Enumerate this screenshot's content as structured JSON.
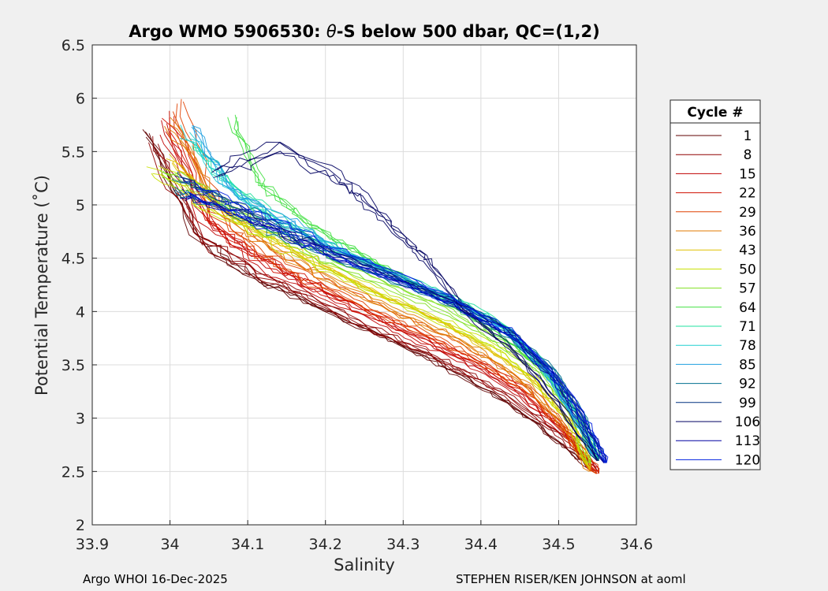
{
  "chart_data": {
    "type": "line",
    "title_prefix": "Argo WMO 5906530: ",
    "title_theta": "θ",
    "title_suffix": "-S below 500 dbar,  QC=(1,2)",
    "xlabel": "Salinity",
    "ylabel": "Potential Temperature (˚C)",
    "xlim": [
      33.9,
      34.6
    ],
    "ylim": [
      2,
      6.5
    ],
    "x_ticks": [
      "33.9",
      "34",
      "34.1",
      "34.2",
      "34.3",
      "34.4",
      "34.5",
      "34.6"
    ],
    "y_ticks": [
      "2",
      "2.5",
      "3",
      "3.5",
      "4",
      "4.5",
      "5",
      "5.5",
      "6",
      "6.5"
    ],
    "grid": true,
    "legend_title": "Cycle #",
    "legend_placement": "right-outside",
    "series": [
      {
        "name": "1",
        "color": "#600000",
        "x": [
          33.97,
          34.03,
          34.1,
          34.18,
          34.25,
          34.32,
          34.38,
          34.44,
          34.5,
          34.54
        ],
        "y": [
          5.72,
          4.75,
          4.35,
          4.08,
          3.85,
          3.62,
          3.38,
          3.12,
          2.78,
          2.52
        ]
      },
      {
        "name": "8",
        "color": "#8f0000",
        "x": [
          33.98,
          34.04,
          34.11,
          34.19,
          34.26,
          34.33,
          34.39,
          34.45,
          34.51,
          34.55
        ],
        "y": [
          5.6,
          4.7,
          4.4,
          4.1,
          3.85,
          3.62,
          3.4,
          3.15,
          2.8,
          2.5
        ]
      },
      {
        "name": "15",
        "color": "#bf0000",
        "x": [
          33.99,
          34.05,
          34.12,
          34.2,
          34.27,
          34.33,
          34.39,
          34.45,
          34.51,
          34.55
        ],
        "y": [
          5.75,
          4.8,
          4.45,
          4.15,
          3.92,
          3.7,
          3.5,
          3.22,
          2.85,
          2.48
        ]
      },
      {
        "name": "22",
        "color": "#d01000",
        "x": [
          34.0,
          34.05,
          34.12,
          34.2,
          34.27,
          34.34,
          34.4,
          34.46,
          34.51,
          34.55
        ],
        "y": [
          5.85,
          4.85,
          4.5,
          4.2,
          3.95,
          3.72,
          3.52,
          3.25,
          2.88,
          2.5
        ]
      },
      {
        "name": "29",
        "color": "#e04000",
        "x": [
          34.01,
          34.06,
          34.12,
          34.2,
          34.27,
          34.34,
          34.4,
          34.46,
          34.51,
          34.55
        ],
        "y": [
          5.95,
          4.95,
          4.58,
          4.25,
          4.0,
          3.78,
          3.55,
          3.28,
          2.9,
          2.48
        ]
      },
      {
        "name": "36",
        "color": "#e07800",
        "x": [
          34.0,
          34.06,
          34.13,
          34.21,
          34.28,
          34.35,
          34.41,
          34.46,
          34.51,
          34.54
        ],
        "y": [
          5.8,
          5.0,
          4.62,
          4.3,
          4.05,
          3.82,
          3.58,
          3.3,
          2.9,
          2.5
        ]
      },
      {
        "name": "43",
        "color": "#e0c000",
        "x": [
          34.0,
          34.06,
          34.13,
          34.21,
          34.28,
          34.35,
          34.41,
          34.47,
          34.52,
          34.54
        ],
        "y": [
          5.4,
          4.95,
          4.65,
          4.35,
          4.1,
          3.88,
          3.62,
          3.32,
          2.92,
          2.52
        ]
      },
      {
        "name": "50",
        "color": "#c8e000",
        "x": [
          33.98,
          34.05,
          34.13,
          34.21,
          34.28,
          34.35,
          34.42,
          34.47,
          34.52,
          34.54
        ],
        "y": [
          5.35,
          5.0,
          4.7,
          4.4,
          4.15,
          3.92,
          3.68,
          3.38,
          2.95,
          2.55
        ]
      },
      {
        "name": "57",
        "color": "#80e020",
        "x": [
          33.99,
          34.06,
          34.13,
          34.21,
          34.29,
          34.36,
          34.42,
          34.48,
          34.52,
          34.54
        ],
        "y": [
          5.3,
          5.05,
          4.75,
          4.45,
          4.2,
          3.98,
          3.72,
          3.42,
          3.0,
          2.58
        ]
      },
      {
        "name": "64",
        "color": "#40e040",
        "x": [
          34.08,
          34.12,
          34.18,
          34.25,
          34.31,
          34.37,
          34.42,
          34.48,
          34.52,
          34.55
        ],
        "y": [
          5.85,
          5.2,
          4.85,
          4.55,
          4.3,
          4.05,
          3.8,
          3.48,
          3.05,
          2.6
        ]
      },
      {
        "name": "71",
        "color": "#20e0a0",
        "x": [
          34.03,
          34.09,
          34.15,
          34.22,
          34.3,
          34.37,
          34.43,
          34.48,
          34.52,
          34.55
        ],
        "y": [
          5.55,
          5.1,
          4.8,
          4.55,
          4.3,
          4.1,
          3.85,
          3.5,
          3.05,
          2.62
        ]
      },
      {
        "name": "78",
        "color": "#20d0d0",
        "x": [
          34.02,
          34.08,
          34.14,
          34.22,
          34.3,
          34.37,
          34.43,
          34.48,
          34.52,
          34.55
        ],
        "y": [
          5.7,
          5.15,
          4.85,
          4.58,
          4.32,
          4.1,
          3.85,
          3.5,
          3.05,
          2.62
        ]
      },
      {
        "name": "85",
        "color": "#20a0e0",
        "x": [
          34.03,
          34.08,
          34.15,
          34.22,
          34.3,
          34.37,
          34.43,
          34.48,
          34.52,
          34.55
        ],
        "y": [
          5.75,
          5.15,
          4.85,
          4.58,
          4.32,
          4.1,
          3.85,
          3.5,
          3.05,
          2.62
        ]
      },
      {
        "name": "92",
        "color": "#007090",
        "x": [
          34.0,
          34.07,
          34.14,
          34.22,
          34.3,
          34.37,
          34.43,
          34.49,
          34.53,
          34.55
        ],
        "y": [
          5.2,
          5.0,
          4.75,
          4.5,
          4.28,
          4.05,
          3.8,
          3.45,
          3.0,
          2.6
        ]
      },
      {
        "name": "99",
        "color": "#003080",
        "x": [
          34.01,
          34.07,
          34.14,
          34.22,
          34.3,
          34.38,
          34.44,
          34.49,
          34.53,
          34.56
        ],
        "y": [
          5.25,
          5.02,
          4.78,
          4.52,
          4.28,
          4.05,
          3.8,
          3.45,
          3.0,
          2.58
        ]
      },
      {
        "name": "106",
        "color": "#000060",
        "x": [
          34.06,
          34.14,
          34.22,
          34.26,
          34.3,
          34.33,
          34.38,
          34.44,
          34.5,
          34.55
        ],
        "y": [
          5.3,
          5.55,
          5.25,
          5.0,
          4.7,
          4.5,
          4.0,
          3.65,
          3.15,
          2.6
        ]
      },
      {
        "name": "113",
        "color": "#0000a0",
        "x": [
          34.02,
          34.08,
          34.15,
          34.23,
          34.31,
          34.38,
          34.44,
          34.49,
          34.53,
          34.56
        ],
        "y": [
          5.1,
          4.95,
          4.72,
          4.48,
          4.25,
          4.02,
          3.78,
          3.42,
          2.98,
          2.58
        ]
      },
      {
        "name": "120",
        "color": "#0020e0",
        "x": [
          34.02,
          34.08,
          34.15,
          34.23,
          34.31,
          34.38,
          34.44,
          34.49,
          34.53,
          34.56
        ],
        "y": [
          5.15,
          4.98,
          4.75,
          4.5,
          4.26,
          4.03,
          3.78,
          3.42,
          2.98,
          2.58
        ]
      }
    ]
  },
  "footer": {
    "left": "Argo WHOI 16-Dec-2025",
    "right": "STEPHEN RISER/KEN JOHNSON at aoml"
  }
}
